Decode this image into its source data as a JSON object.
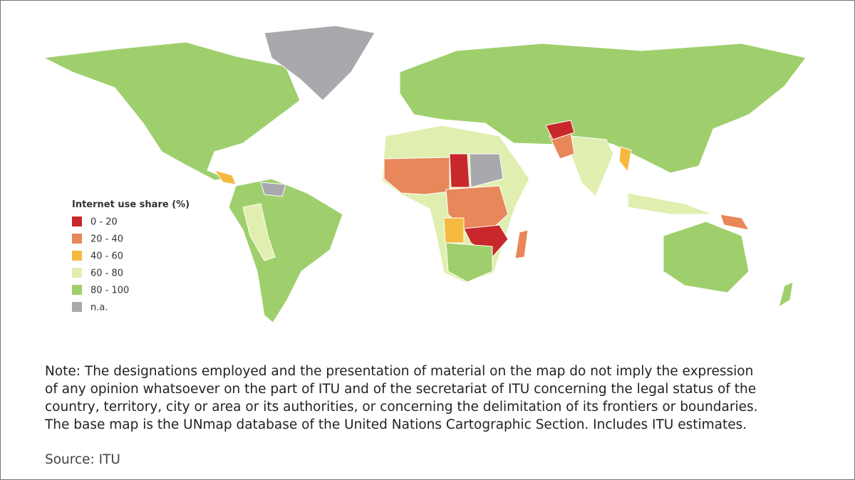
{
  "legend": {
    "title": "Internet use share (%)",
    "items": [
      {
        "label": "0 - 20",
        "color": "#c8282b"
      },
      {
        "label": "20 - 40",
        "color": "#e8875a"
      },
      {
        "label": "40 - 60",
        "color": "#f5b940"
      },
      {
        "label": "60 - 80",
        "color": "#e0efb0"
      },
      {
        "label": "80 - 100",
        "color": "#9fcf6c"
      },
      {
        "label": "n.a.",
        "color": "#a9a9ad"
      }
    ]
  },
  "note": [
    "Note: The designations employed and the presentation of material on the map do not imply the expression",
    "of any opinion whatsoever on the part of ITU and of the secretariat of ITU concerning the legal status of the",
    "country, territory, city or area or its authorities, or concerning the delimitation of its frontiers or boundaries.",
    "The base map is the UNmap database of the United Nations Cartographic Section. Includes ITU estimates."
  ],
  "source": "Source: ITU"
}
